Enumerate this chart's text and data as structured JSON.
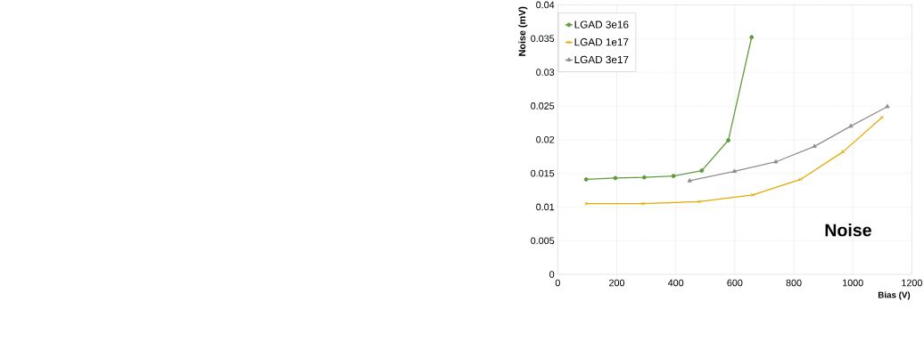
{
  "chart_data": {
    "type": "line",
    "xlabel": "Bias (V)",
    "ylabel": "Noise (mV)",
    "xlim": [
      0,
      1200
    ],
    "ylim": [
      0,
      0.04
    ],
    "xticks": [
      0,
      200,
      400,
      600,
      800,
      1000,
      1200
    ],
    "yticks": [
      0,
      0.005,
      0.01,
      0.015,
      0.02,
      0.025,
      0.03,
      0.035,
      0.04
    ],
    "grid": true,
    "legend": "top left",
    "annotations": [
      "Noise"
    ],
    "series": [
      {
        "name": "LGAD 3e16",
        "color": "#5f9b3c",
        "marker": "circle",
        "x": [
          96,
          195,
          293,
          392,
          488,
          578,
          657
        ],
        "values": [
          0.0141,
          0.0143,
          0.0144,
          0.0146,
          0.0154,
          0.0199,
          0.0352
        ]
      },
      {
        "name": "LGAD 1e17",
        "color": "#e3aa00",
        "marker": "cross",
        "x": [
          96,
          289,
          479,
          661,
          823,
          967,
          1099
        ],
        "values": [
          0.0105,
          0.0105,
          0.0108,
          0.0118,
          0.0141,
          0.0182,
          0.0233
        ]
      },
      {
        "name": "LGAD 3e17",
        "color": "#8f8f8f",
        "marker": "triangle",
        "x": [
          447,
          599,
          739,
          870,
          993,
          1117
        ],
        "values": [
          0.0139,
          0.0153,
          0.0167,
          0.019,
          0.022,
          0.0249
        ]
      }
    ]
  }
}
